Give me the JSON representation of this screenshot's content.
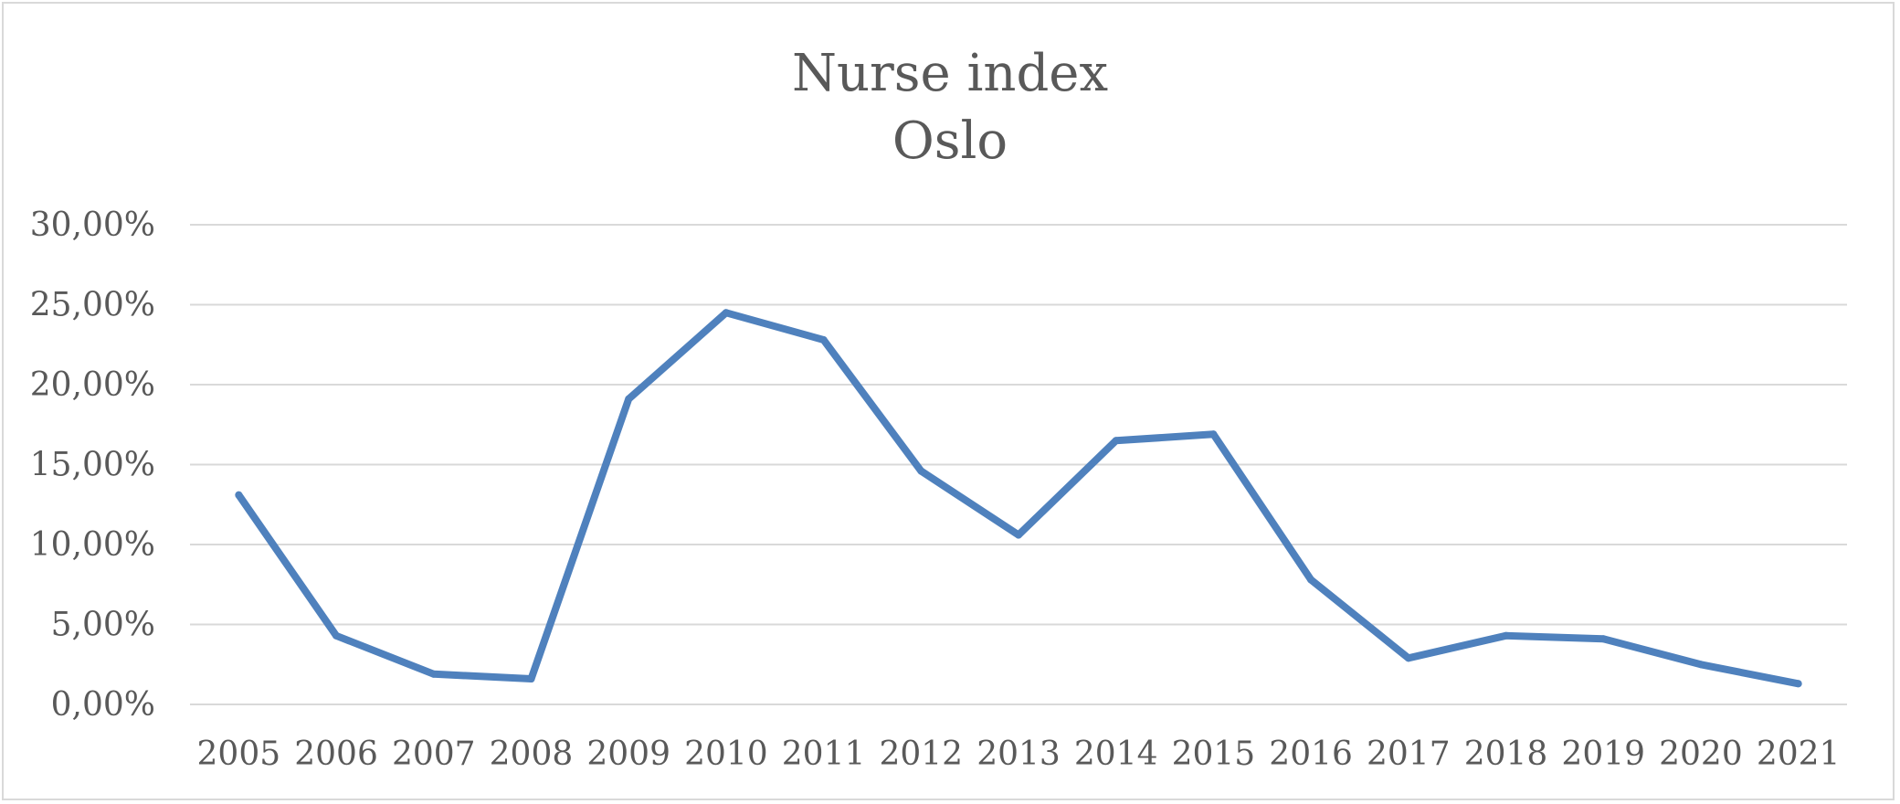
{
  "chart_data": {
    "type": "line",
    "title": "Nurse index",
    "subtitle": "Oslo",
    "xlabel": "",
    "ylabel": "",
    "categories": [
      "2005",
      "2006",
      "2007",
      "2008",
      "2009",
      "2010",
      "2011",
      "2012",
      "2013",
      "2014",
      "2015",
      "2016",
      "2017",
      "2018",
      "2019",
      "2020",
      "2021"
    ],
    "series": [
      {
        "values": [
          0.131,
          0.043,
          0.019,
          0.016,
          0.191,
          0.245,
          0.228,
          0.146,
          0.106,
          0.165,
          0.169,
          0.078,
          0.029,
          0.043,
          0.041,
          0.025,
          0.013
        ]
      }
    ],
    "ylim": [
      0,
      0.3
    ],
    "yticks": [
      0,
      0.05,
      0.1,
      0.15,
      0.2,
      0.25,
      0.3
    ],
    "ytick_labels": [
      "0,00%",
      "5,00%",
      "10,00%",
      "15,00%",
      "20,00%",
      "25,00%",
      "30,00%"
    ],
    "grid": true,
    "legend": "none",
    "colors": {
      "line": "#4f81bd",
      "grid": "#d9d9d9",
      "text": "#595959",
      "border": "#d9d9d9"
    }
  }
}
